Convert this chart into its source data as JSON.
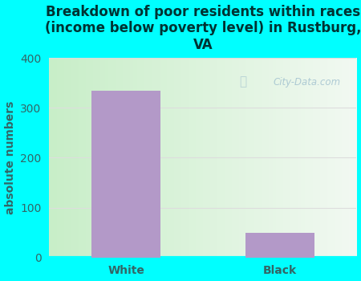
{
  "categories": [
    "White",
    "Black"
  ],
  "values": [
    335,
    50
  ],
  "bar_color": "#b399c8",
  "title": "Breakdown of poor residents within races\n(income below poverty level) in Rustburg,\nVA",
  "ylabel": "absolute numbers",
  "ylim": [
    0,
    400
  ],
  "yticks": [
    0,
    100,
    200,
    300,
    400
  ],
  "background_color": "#00ffff",
  "plot_bg_left": "#c8eec8",
  "plot_bg_right": "#f0f8f0",
  "title_color": "#003333",
  "axis_color": "#336666",
  "grid_color": "#dddddd",
  "watermark_text": "City-Data.com",
  "title_fontsize": 12,
  "label_fontsize": 10,
  "tick_fontsize": 10
}
